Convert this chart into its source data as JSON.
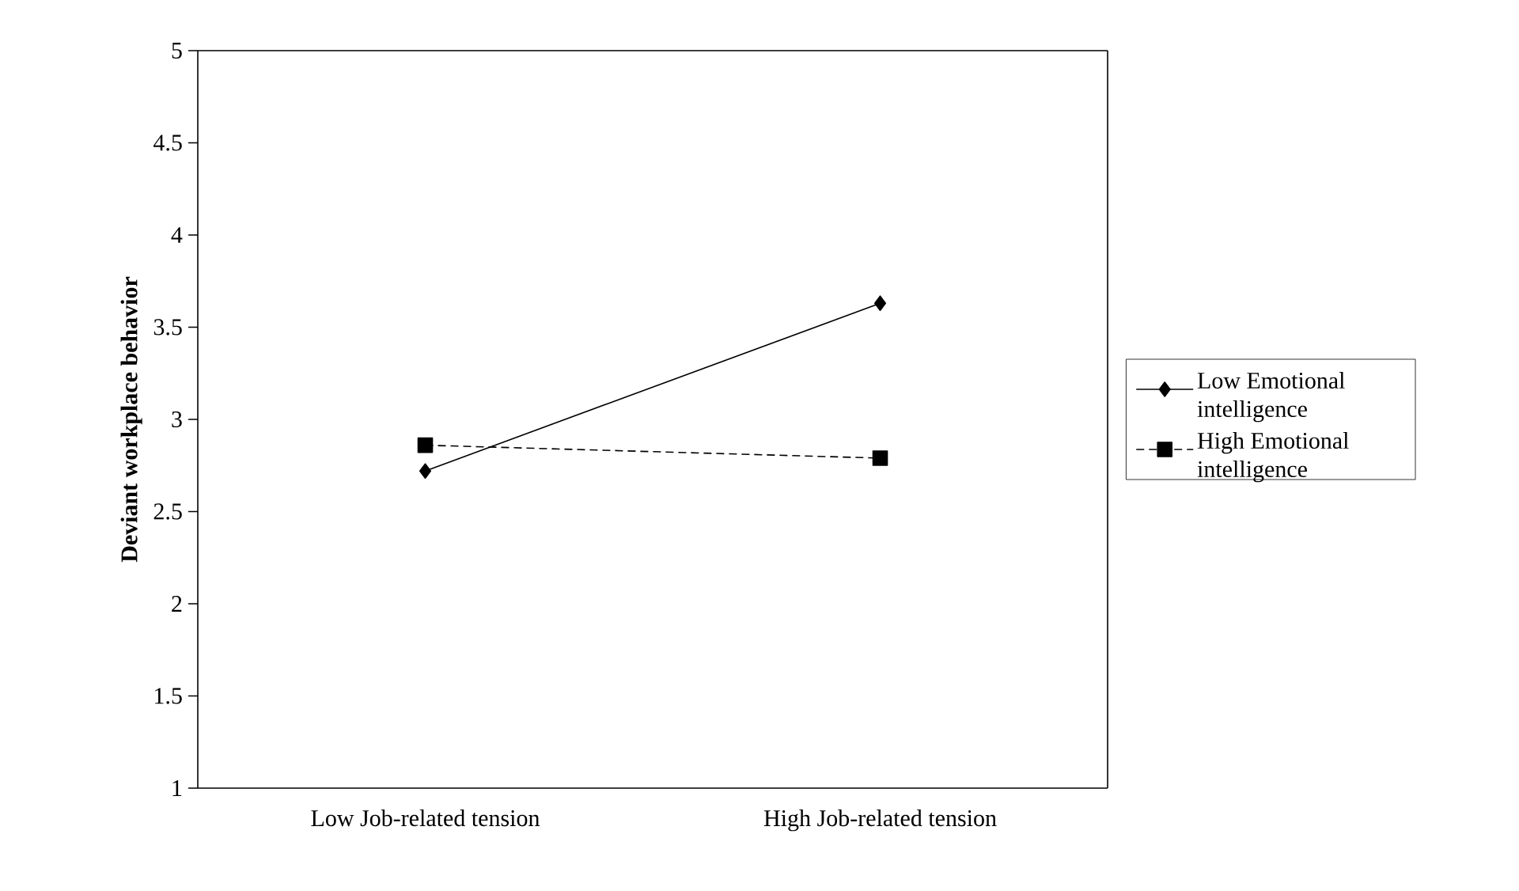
{
  "chart_data": {
    "type": "line",
    "ylabel": "Deviant workplace behavior",
    "categories": [
      "Low Job-related tension",
      "High Job-related tension"
    ],
    "series": [
      {
        "name": "Low Emotional intelligence",
        "color": "#000000",
        "values": [
          2.72,
          3.63
        ],
        "marker": "diamond",
        "line_style": "solid"
      },
      {
        "name": "High Emotional intelligence",
        "color": "#000000",
        "values": [
          2.86,
          2.79
        ],
        "marker": "square",
        "line_style": "dashed"
      }
    ],
    "ylim": [
      1,
      5
    ],
    "yticks": [
      1,
      1.5,
      2,
      2.5,
      3,
      3.5,
      4,
      4.5,
      5
    ],
    "grid": false,
    "legend": "right"
  }
}
